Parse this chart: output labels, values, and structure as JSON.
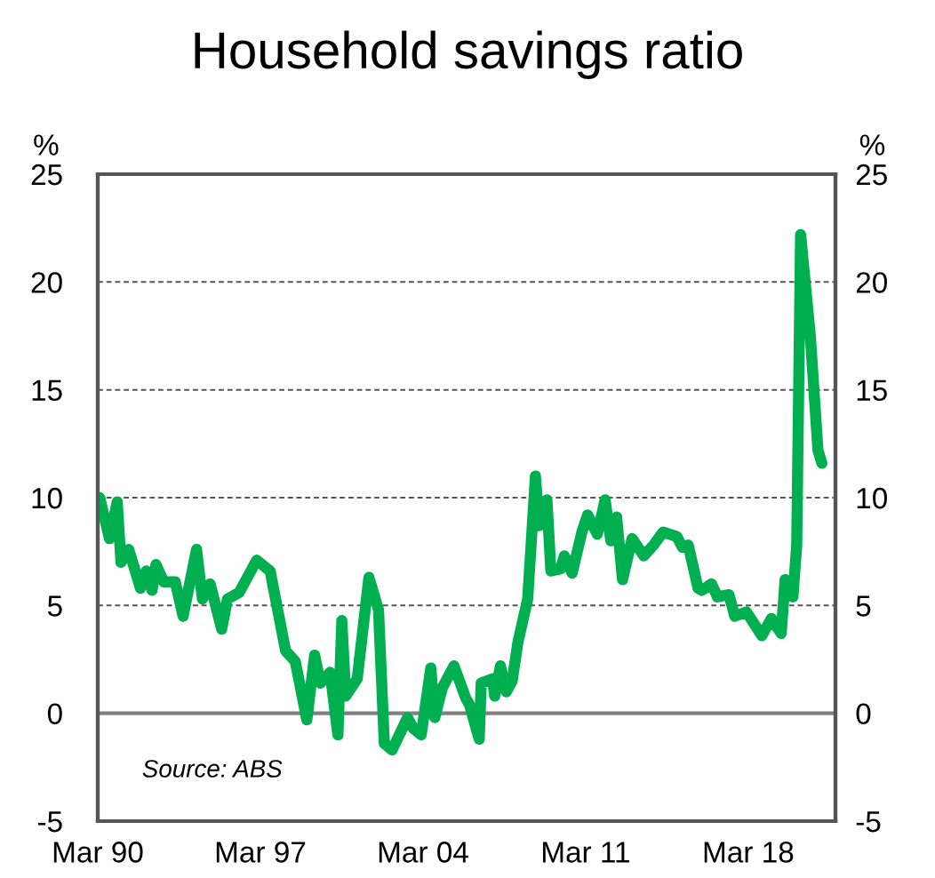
{
  "chart_data": {
    "type": "line",
    "title": "Household savings ratio",
    "ylabel": "%",
    "y2label": "%",
    "annotations": [
      "Source: ABS"
    ],
    "series": [
      {
        "color": "#00b050",
        "x": [
          "1990-04",
          "1990-09",
          "1991-01",
          "1991-03",
          "1991-07",
          "1992-01",
          "1992-04",
          "1992-07",
          "1992-09",
          "1993-01",
          "1993-07",
          "1993-11",
          "1994-06",
          "1994-09",
          "1995-01",
          "1995-07",
          "1995-10",
          "1996-04",
          "1997-01",
          "1997-08",
          "1998-04",
          "1998-09",
          "1999-03",
          "1999-07",
          "1999-10",
          "2000-03",
          "2000-07",
          "2000-09",
          "2000-11",
          "2001-05",
          "2001-11",
          "2002-04",
          "2002-07",
          "2002-11",
          "2003-07",
          "2003-10",
          "2004-02",
          "2004-07",
          "2004-09",
          "2005-01",
          "2005-07",
          "2006-01",
          "2006-03",
          "2006-08",
          "2006-09",
          "2007-03",
          "2007-04",
          "2007-07",
          "2007-10",
          "2008-01",
          "2008-04",
          "2008-09",
          "2009-01",
          "2009-03",
          "2009-07",
          "2009-09",
          "2010-02",
          "2010-04",
          "2010-08",
          "2011-01",
          "2011-04",
          "2011-09",
          "2012-01",
          "2012-04",
          "2012-07",
          "2012-10",
          "2013-03",
          "2013-09",
          "2014-02",
          "2014-07",
          "2015-02",
          "2015-05",
          "2015-08",
          "2016-01",
          "2016-03",
          "2016-08",
          "2016-11",
          "2017-05",
          "2017-08",
          "2018-02",
          "2018-10",
          "2019-03",
          "2019-08",
          "2019-10",
          "2020-02",
          "2020-04",
          "2020-06",
          "2020-11",
          "2021-03",
          "2021-05"
        ],
        "values": [
          10.0,
          8.1,
          9.8,
          7.0,
          7.6,
          5.8,
          6.6,
          5.7,
          6.9,
          6.1,
          6.1,
          4.5,
          7.6,
          5.3,
          6.0,
          3.9,
          5.3,
          5.6,
          7.1,
          6.6,
          2.9,
          2.4,
          -0.3,
          2.7,
          1.4,
          1.9,
          -1.0,
          4.3,
          0.8,
          1.6,
          6.3,
          4.8,
          -1.4,
          -1.7,
          -0.2,
          -0.7,
          -1.0,
          2.1,
          -0.2,
          1.2,
          2.2,
          0.7,
          0.4,
          -1.2,
          1.4,
          1.6,
          0.8,
          2.2,
          1.0,
          1.5,
          3.3,
          5.3,
          11.0,
          8.7,
          9.9,
          6.6,
          6.7,
          7.3,
          6.5,
          8.4,
          9.2,
          8.3,
          9.9,
          8.0,
          9.1,
          6.2,
          8.1,
          7.3,
          7.8,
          8.4,
          8.2,
          7.7,
          7.8,
          5.8,
          5.7,
          6.0,
          5.4,
          5.5,
          4.5,
          4.7,
          3.6,
          4.4,
          3.7,
          6.2,
          5.4,
          7.8,
          22.2,
          17.5,
          12.2,
          11.6
        ]
      }
    ],
    "xlim": [
      "1990-03",
      "2021-12"
    ],
    "xticks": [
      {
        "value": "1990-03",
        "label": "Mar 90"
      },
      {
        "value": "1997-03",
        "label": "Mar 97"
      },
      {
        "value": "2004-03",
        "label": "Mar 04"
      },
      {
        "value": "2011-03",
        "label": "Mar 11"
      },
      {
        "value": "2018-03",
        "label": "Mar 18"
      }
    ],
    "ylim": [
      -5,
      25
    ],
    "yticks": [
      -5,
      0,
      5,
      10,
      15,
      20,
      25
    ],
    "y2lim": [
      -5,
      25
    ],
    "y2ticks": [
      -5,
      0,
      5,
      10,
      15,
      20,
      25
    ],
    "ref_lines": [
      {
        "axis": "y",
        "value": 0,
        "color": "#808080"
      }
    ],
    "grid": "y",
    "legend": false,
    "marker": "none",
    "line_style": "solid"
  }
}
